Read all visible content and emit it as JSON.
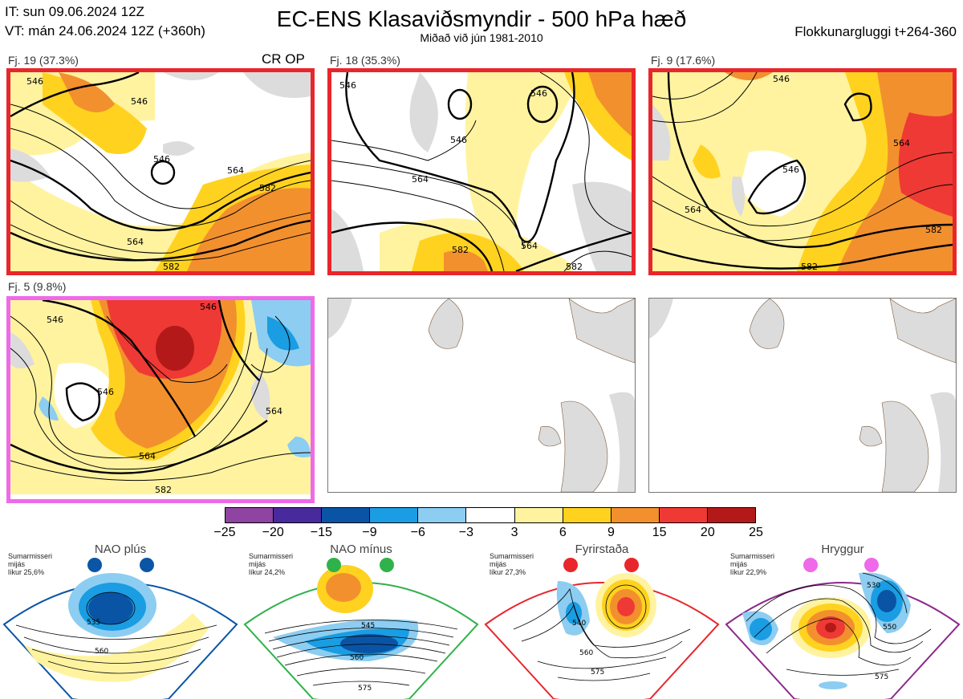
{
  "header": {
    "init_time": "IT: sun 09.06.2024 12Z",
    "valid_time": "VT: mán 24.06.2024 12Z  (+360h)",
    "title": "EC-ENS Klasaviðsmyndir - 500 hPa hæð",
    "subtitle": "Miðað við jún 1981-2010",
    "window": "Flokkunargluggi t+264-360"
  },
  "clusters": [
    {
      "label": "Fj. 19 (37.3%)",
      "tag": "CR OP",
      "frame_color": "#e8262b",
      "contours": [
        "546",
        "546",
        "546",
        "564",
        "564",
        "582",
        "582"
      ]
    },
    {
      "label": "Fj. 18 (35.3%)",
      "frame_color": "#e8262b",
      "contours": [
        "546",
        "546",
        "546",
        "564",
        "564",
        "582",
        "582"
      ]
    },
    {
      "label": "Fj. 9 (17.6%)",
      "frame_color": "#e8262b",
      "contours": [
        "546",
        "546",
        "564",
        "564",
        "582",
        "582"
      ]
    },
    {
      "label": "Fj. 5 (9.8%)",
      "frame_color": "#ee6ae8",
      "contours": [
        "546",
        "546",
        "546",
        "564",
        "564",
        "582"
      ]
    }
  ],
  "colorbar": {
    "ticks": [
      "−25",
      "−20",
      "−15",
      "−9",
      "−6",
      "−3",
      "3",
      "6",
      "9",
      "15",
      "20",
      "25"
    ],
    "colors": [
      "#8e44a0",
      "#472b9c",
      "#0a54a5",
      "#1a9de2",
      "#8ccdf1",
      "#ffffff",
      "#fff3a0",
      "#ffd21f",
      "#f2902e",
      "#ef3935",
      "#b41919"
    ]
  },
  "regimes": [
    {
      "name": "NAO plús",
      "season": "Sumarmisseri",
      "period": "mijás",
      "likelihood": "líkur 25,6%",
      "dot_color": "#0b55a5",
      "frame_color": "#0b55a5",
      "contours": [
        "535",
        "560"
      ]
    },
    {
      "name": "NAO mínus",
      "season": "Sumarmisseri",
      "period": "mijás",
      "likelihood": "líkur 24,2%",
      "dot_color": "#2fb24a",
      "frame_color": "#2fb24a",
      "contours": [
        "545",
        "560",
        "575"
      ]
    },
    {
      "name": "Fyrirstaða",
      "season": "Sumarmisseri",
      "period": "mijás",
      "likelihood": "líkur 27,3%",
      "dot_color": "#e8262b",
      "frame_color": "#e8262b",
      "contours": [
        "540",
        "560",
        "575"
      ]
    },
    {
      "name": "Hryggur",
      "season": "Sumarmisseri",
      "period": "mijás",
      "likelihood": "líkur 22,9%",
      "dot_color": "#ee6ae8",
      "frame_color": "#8b2a8b",
      "contours": [
        "530",
        "550",
        "575"
      ]
    }
  ]
}
